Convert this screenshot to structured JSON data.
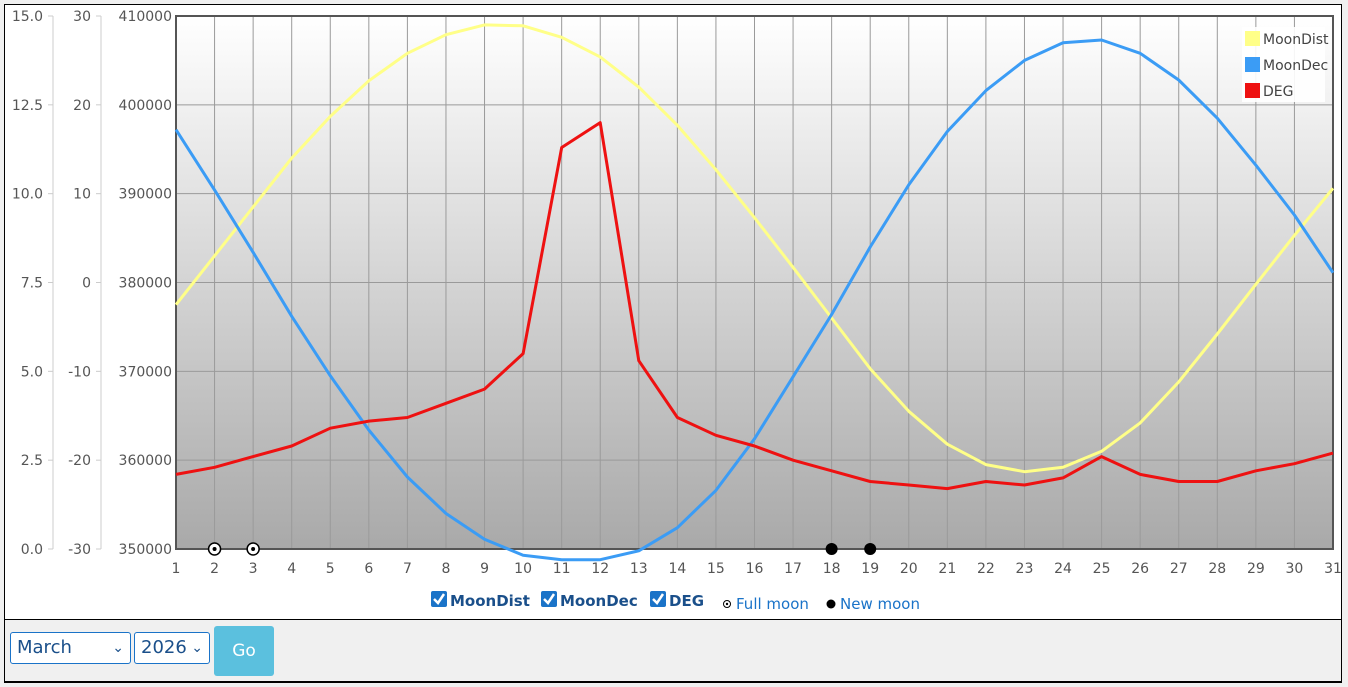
{
  "chart_data": {
    "type": "line",
    "x": [
      1,
      2,
      3,
      4,
      5,
      6,
      7,
      8,
      9,
      10,
      11,
      12,
      13,
      14,
      15,
      16,
      17,
      18,
      19,
      20,
      21,
      22,
      23,
      24,
      25,
      26,
      27,
      28,
      29,
      30,
      31
    ],
    "xlim": [
      1,
      31
    ],
    "grid": true,
    "legend_position": "top-right",
    "axes": {
      "deg": {
        "ylim": [
          0,
          15
        ],
        "ticks": [
          "0.0",
          "2.5",
          "5.0",
          "7.5",
          "10.0",
          "12.5",
          "15.0"
        ]
      },
      "dec": {
        "ylim": [
          -30,
          30
        ],
        "ticks": [
          "-30",
          "-20",
          "-10",
          "0",
          "10",
          "20",
          "30"
        ]
      },
      "dist": {
        "ylim": [
          350000,
          410000
        ],
        "ticks": [
          "350000",
          "360000",
          "370000",
          "380000",
          "390000",
          "400000",
          "410000"
        ]
      }
    },
    "series": [
      {
        "name": "MoonDist",
        "axis": "dist",
        "color": "#ffff88",
        "values": [
          377500,
          383000,
          388500,
          394000,
          398700,
          402700,
          405800,
          407900,
          409000,
          408900,
          407600,
          405400,
          402000,
          397700,
          392700,
          387300,
          381700,
          376000,
          370300,
          365500,
          361800,
          359500,
          358700,
          359200,
          361000,
          364200,
          368800,
          374200,
          379800,
          385300,
          390600
        ]
      },
      {
        "name": "MoonDec",
        "axis": "dec",
        "color": "#3b9cf5",
        "values": [
          17.2,
          10.4,
          3.4,
          -3.8,
          -10.5,
          -16.6,
          -21.9,
          -26.0,
          -28.9,
          -30.7,
          -31.2,
          -31.2,
          -30.2,
          -27.6,
          -23.4,
          -17.6,
          -10.6,
          -3.6,
          4.0,
          11.0,
          17.0,
          21.6,
          25.0,
          27.0,
          27.3,
          25.8,
          22.8,
          18.5,
          13.2,
          7.6,
          1.1
        ]
      },
      {
        "name": "DEG",
        "axis": "deg",
        "color": "#ee1111",
        "values": [
          2.1,
          2.3,
          2.6,
          2.9,
          3.4,
          3.6,
          3.7,
          4.1,
          4.5,
          5.5,
          11.3,
          12.0,
          5.3,
          3.7,
          3.2,
          2.9,
          2.5,
          2.2,
          1.9,
          1.8,
          1.7,
          1.9,
          1.8,
          2.0,
          2.6,
          2.1,
          1.9,
          1.9,
          2.2,
          2.4,
          2.7
        ]
      }
    ],
    "moon_phases": [
      {
        "day": 2,
        "phase": "full"
      },
      {
        "day": 3,
        "phase": "full"
      },
      {
        "day": 18,
        "phase": "new"
      },
      {
        "day": 19,
        "phase": "new"
      }
    ]
  },
  "legend": {
    "items": [
      {
        "label": "MoonDist",
        "color": "#ffff88"
      },
      {
        "label": "MoonDec",
        "color": "#3b9cf5"
      },
      {
        "label": "DEG",
        "color": "#ee1111"
      }
    ]
  },
  "toggles": [
    {
      "label": "MoonDist",
      "checked": true
    },
    {
      "label": "MoonDec",
      "checked": true
    },
    {
      "label": "DEG",
      "checked": true
    }
  ],
  "phase_legend": {
    "full": "Full moon",
    "new": "New moon"
  },
  "controls": {
    "month": "March",
    "year": "2026",
    "go": "Go"
  }
}
